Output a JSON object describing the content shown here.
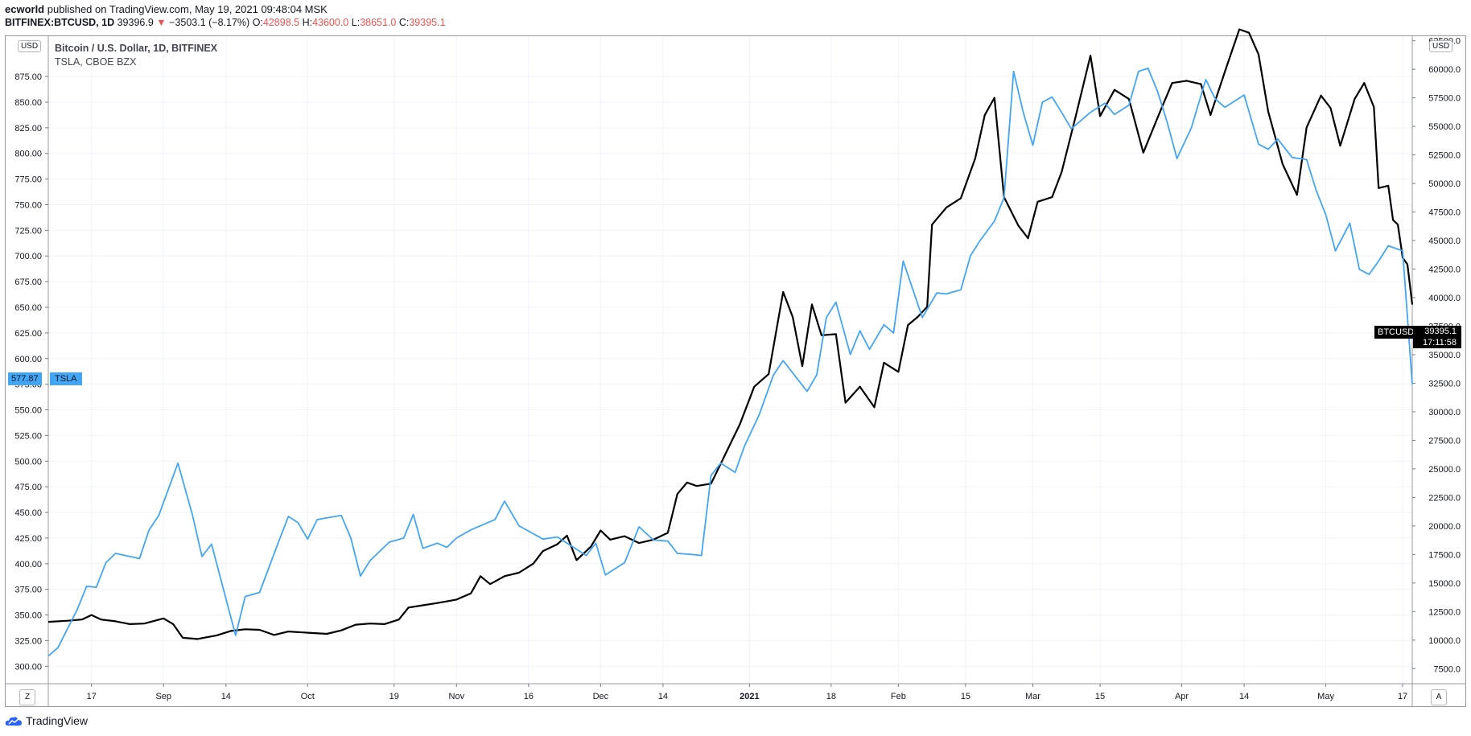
{
  "header": {
    "author": "ecworld",
    "published_text": "published on TradingView.com, May 19, 2021 09:48:04 MSK",
    "symbol": "BITFINEX:BTCUSD, 1D",
    "last": "39396.9",
    "change": "−3503.1 (−8.17%)",
    "o_label": "O:",
    "o_value": "42898.5",
    "h_label": "H:",
    "h_value": "43600.0",
    "l_label": "L:",
    "l_value": "38651.0",
    "c_label": "C:",
    "c_value": "39395.1"
  },
  "legend": {
    "line1": "Bitcoin / U.S. Dollar, 1D, BITFINEX",
    "line2": "TSLA, CBOE BZX"
  },
  "scale_tags": {
    "left": "USD",
    "right": "USD"
  },
  "labels": {
    "tsla_price": "577.87",
    "tsla_name": "TSLA",
    "btc_name": "BTCUSD",
    "btc_price": "39395.1",
    "btc_countdown": "17:11:58"
  },
  "corners": {
    "left": "Z",
    "right": "A"
  },
  "footer": {
    "brand": "TradingView"
  },
  "colors": {
    "btc": "#000000",
    "tsla": "#42a5f5",
    "grid": "#f0f3fa"
  },
  "chart_data": {
    "type": "line",
    "x_range": [
      "2020-08-08",
      "2021-05-19"
    ],
    "x_ticks": [
      {
        "date": "2020-08-17",
        "label": "17"
      },
      {
        "date": "2020-09-01",
        "label": "Sep"
      },
      {
        "date": "2020-09-14",
        "label": "14"
      },
      {
        "date": "2020-10-01",
        "label": "Oct"
      },
      {
        "date": "2020-10-19",
        "label": "19"
      },
      {
        "date": "2020-11-01",
        "label": "Nov"
      },
      {
        "date": "2020-11-16",
        "label": "16"
      },
      {
        "date": "2020-12-01",
        "label": "Dec"
      },
      {
        "date": "2020-12-14",
        "label": "14"
      },
      {
        "date": "2021-01-01",
        "label": "2021"
      },
      {
        "date": "2021-01-18",
        "label": "18"
      },
      {
        "date": "2021-02-01",
        "label": "Feb"
      },
      {
        "date": "2021-02-15",
        "label": "15"
      },
      {
        "date": "2021-03-01",
        "label": "Mar"
      },
      {
        "date": "2021-03-15",
        "label": "15"
      },
      {
        "date": "2021-04-01",
        "label": "Apr"
      },
      {
        "date": "2021-04-14",
        "label": "14"
      },
      {
        "date": "2021-05-01",
        "label": "May"
      },
      {
        "date": "2021-05-17",
        "label": "17"
      }
    ],
    "left_axis": {
      "ylim": [
        283.75,
        914.3
      ],
      "ticks": [
        "300.00",
        "325.00",
        "350.00",
        "375.00",
        "400.00",
        "425.00",
        "450.00",
        "475.00",
        "500.00",
        "525.00",
        "550.00",
        "575.00",
        "600.00",
        "625.00",
        "650.00",
        "675.00",
        "700.00",
        "725.00",
        "750.00",
        "775.00",
        "800.00",
        "825.00",
        "850.00",
        "875.00"
      ]
    },
    "right_axis": {
      "ylim": [
        6250,
        62900
      ],
      "ticks": [
        "7500.0",
        "10000.0",
        "12500.0",
        "15000.0",
        "17500.0",
        "20000.0",
        "22500.0",
        "25000.0",
        "27500.0",
        "30000.0",
        "32500.0",
        "35000.0",
        "37500.0",
        "40000.0",
        "42500.0",
        "45000.0",
        "47500.0",
        "50000.0",
        "52500.0",
        "55000.0",
        "57500.0",
        "60000.0",
        "62500.0"
      ]
    },
    "series": [
      {
        "name": "BTCUSD",
        "axis": "right",
        "points": [
          [
            "2020-08-08",
            11600
          ],
          [
            "2020-08-12",
            11700
          ],
          [
            "2020-08-15",
            11800
          ],
          [
            "2020-08-17",
            12200
          ],
          [
            "2020-08-19",
            11800
          ],
          [
            "2020-08-22",
            11650
          ],
          [
            "2020-08-25",
            11400
          ],
          [
            "2020-08-28",
            11450
          ],
          [
            "2020-09-01",
            11900
          ],
          [
            "2020-09-03",
            11400
          ],
          [
            "2020-09-05",
            10200
          ],
          [
            "2020-09-08",
            10100
          ],
          [
            "2020-09-12",
            10400
          ],
          [
            "2020-09-15",
            10800
          ],
          [
            "2020-09-18",
            10950
          ],
          [
            "2020-09-21",
            10900
          ],
          [
            "2020-09-24",
            10450
          ],
          [
            "2020-09-27",
            10750
          ],
          [
            "2020-10-01",
            10650
          ],
          [
            "2020-10-05",
            10550
          ],
          [
            "2020-10-08",
            10850
          ],
          [
            "2020-10-11",
            11350
          ],
          [
            "2020-10-14",
            11450
          ],
          [
            "2020-10-17",
            11400
          ],
          [
            "2020-10-20",
            11800
          ],
          [
            "2020-10-22",
            12850
          ],
          [
            "2020-10-25",
            13050
          ],
          [
            "2020-10-28",
            13250
          ],
          [
            "2020-11-01",
            13550
          ],
          [
            "2020-11-04",
            14100
          ],
          [
            "2020-11-06",
            15600
          ],
          [
            "2020-11-08",
            14900
          ],
          [
            "2020-11-11",
            15600
          ],
          [
            "2020-11-14",
            15900
          ],
          [
            "2020-11-17",
            16700
          ],
          [
            "2020-11-19",
            17800
          ],
          [
            "2020-11-22",
            18400
          ],
          [
            "2020-11-24",
            19150
          ],
          [
            "2020-11-26",
            17000
          ],
          [
            "2020-11-29",
            18200
          ],
          [
            "2020-12-01",
            19600
          ],
          [
            "2020-12-03",
            18800
          ],
          [
            "2020-12-06",
            19100
          ],
          [
            "2020-12-09",
            18500
          ],
          [
            "2020-12-12",
            18800
          ],
          [
            "2020-12-15",
            19400
          ],
          [
            "2020-12-17",
            22800
          ],
          [
            "2020-12-19",
            23800
          ],
          [
            "2020-12-21",
            23500
          ],
          [
            "2020-12-24",
            23700
          ],
          [
            "2020-12-27",
            26300
          ],
          [
            "2020-12-30",
            28900
          ],
          [
            "2021-01-02",
            32200
          ],
          [
            "2021-01-05",
            33300
          ],
          [
            "2021-01-08",
            40500
          ],
          [
            "2021-01-10",
            38300
          ],
          [
            "2021-01-12",
            34000
          ],
          [
            "2021-01-14",
            39400
          ],
          [
            "2021-01-16",
            36700
          ],
          [
            "2021-01-19",
            36800
          ],
          [
            "2021-01-21",
            30800
          ],
          [
            "2021-01-24",
            32200
          ],
          [
            "2021-01-27",
            30400
          ],
          [
            "2021-01-29",
            34300
          ],
          [
            "2021-02-01",
            33500
          ],
          [
            "2021-02-03",
            37600
          ],
          [
            "2021-02-05",
            38300
          ],
          [
            "2021-02-07",
            39200
          ],
          [
            "2021-02-08",
            46400
          ],
          [
            "2021-02-11",
            47900
          ],
          [
            "2021-02-14",
            48700
          ],
          [
            "2021-02-17",
            52200
          ],
          [
            "2021-02-19",
            56000
          ],
          [
            "2021-02-21",
            57500
          ],
          [
            "2021-02-23",
            48800
          ],
          [
            "2021-02-26",
            46300
          ],
          [
            "2021-02-28",
            45200
          ],
          [
            "2021-03-02",
            48400
          ],
          [
            "2021-03-05",
            48800
          ],
          [
            "2021-03-07",
            51000
          ],
          [
            "2021-03-10",
            56000
          ],
          [
            "2021-03-13",
            61200
          ],
          [
            "2021-03-15",
            55900
          ],
          [
            "2021-03-18",
            58200
          ],
          [
            "2021-03-21",
            57400
          ],
          [
            "2021-03-24",
            52700
          ],
          [
            "2021-03-27",
            55800
          ],
          [
            "2021-03-30",
            58800
          ],
          [
            "2021-04-02",
            59000
          ],
          [
            "2021-04-05",
            58700
          ],
          [
            "2021-04-07",
            56000
          ],
          [
            "2021-04-10",
            59800
          ],
          [
            "2021-04-13",
            63500
          ],
          [
            "2021-04-15",
            63200
          ],
          [
            "2021-04-17",
            61300
          ],
          [
            "2021-04-19",
            56300
          ],
          [
            "2021-04-22",
            51700
          ],
          [
            "2021-04-25",
            49000
          ],
          [
            "2021-04-27",
            54900
          ],
          [
            "2021-04-30",
            57700
          ],
          [
            "2021-05-02",
            56600
          ],
          [
            "2021-05-04",
            53300
          ],
          [
            "2021-05-07",
            57400
          ],
          [
            "2021-05-09",
            58800
          ],
          [
            "2021-05-11",
            56700
          ],
          [
            "2021-05-12",
            49600
          ],
          [
            "2021-05-14",
            49800
          ],
          [
            "2021-05-15",
            46800
          ],
          [
            "2021-05-16",
            46400
          ],
          [
            "2021-05-17",
            43500
          ],
          [
            "2021-05-18",
            42900
          ],
          [
            "2021-05-19",
            39395
          ]
        ]
      },
      {
        "name": "TSLA",
        "axis": "left",
        "points": [
          [
            "2020-08-08",
            310
          ],
          [
            "2020-08-10",
            318
          ],
          [
            "2020-08-14",
            355
          ],
          [
            "2020-08-16",
            378
          ],
          [
            "2020-08-18",
            377
          ],
          [
            "2020-08-20",
            401
          ],
          [
            "2020-08-22",
            410
          ],
          [
            "2020-08-27",
            405
          ],
          [
            "2020-08-29",
            433
          ],
          [
            "2020-08-31",
            447
          ],
          [
            "2020-09-04",
            498
          ],
          [
            "2020-09-07",
            448
          ],
          [
            "2020-09-09",
            407
          ],
          [
            "2020-09-11",
            419
          ],
          [
            "2020-09-16",
            330
          ],
          [
            "2020-09-18",
            368
          ],
          [
            "2020-09-21",
            372
          ],
          [
            "2020-09-25",
            422
          ],
          [
            "2020-09-27",
            446
          ],
          [
            "2020-09-29",
            440
          ],
          [
            "2020-10-01",
            424
          ],
          [
            "2020-10-03",
            443
          ],
          [
            "2020-10-08",
            447
          ],
          [
            "2020-10-10",
            425
          ],
          [
            "2020-10-12",
            388
          ],
          [
            "2020-10-14",
            403
          ],
          [
            "2020-10-18",
            421
          ],
          [
            "2020-10-21",
            425
          ],
          [
            "2020-10-23",
            448
          ],
          [
            "2020-10-25",
            415
          ],
          [
            "2020-10-28",
            420
          ],
          [
            "2020-10-30",
            416
          ],
          [
            "2020-11-01",
            425
          ],
          [
            "2020-11-04",
            433
          ],
          [
            "2020-11-09",
            443
          ],
          [
            "2020-11-11",
            461
          ],
          [
            "2020-11-14",
            437
          ],
          [
            "2020-11-19",
            424
          ],
          [
            "2020-11-22",
            426
          ],
          [
            "2020-11-24",
            420
          ],
          [
            "2020-11-28",
            408
          ],
          [
            "2020-11-30",
            420
          ],
          [
            "2020-12-02",
            389
          ],
          [
            "2020-12-06",
            401
          ],
          [
            "2020-12-09",
            436
          ],
          [
            "2020-12-12",
            423
          ],
          [
            "2020-12-15",
            422
          ],
          [
            "2020-12-17",
            410
          ],
          [
            "2020-12-20",
            409
          ],
          [
            "2020-12-22",
            408
          ],
          [
            "2020-12-24",
            486
          ],
          [
            "2020-12-26",
            498
          ],
          [
            "2020-12-29",
            489
          ],
          [
            "2020-12-31",
            515
          ],
          [
            "2021-01-03",
            545
          ],
          [
            "2021-01-06",
            584
          ],
          [
            "2021-01-08",
            598
          ],
          [
            "2021-01-11",
            580
          ],
          [
            "2021-01-13",
            568
          ],
          [
            "2021-01-15",
            584
          ],
          [
            "2021-01-17",
            640
          ],
          [
            "2021-01-19",
            655
          ],
          [
            "2021-01-22",
            604
          ],
          [
            "2021-01-24",
            627
          ],
          [
            "2021-01-26",
            609
          ],
          [
            "2021-01-29",
            633
          ],
          [
            "2021-01-31",
            625
          ],
          [
            "2021-02-02",
            695
          ],
          [
            "2021-02-06",
            640
          ],
          [
            "2021-02-09",
            664
          ],
          [
            "2021-02-11",
            663
          ],
          [
            "2021-02-14",
            667
          ],
          [
            "2021-02-16",
            700
          ],
          [
            "2021-02-18",
            715
          ],
          [
            "2021-02-21",
            734
          ],
          [
            "2021-02-23",
            757
          ],
          [
            "2021-02-25",
            880
          ],
          [
            "2021-02-27",
            840
          ],
          [
            "2021-03-01",
            808
          ],
          [
            "2021-03-03",
            850
          ],
          [
            "2021-03-05",
            855
          ],
          [
            "2021-03-07",
            840
          ],
          [
            "2021-03-09",
            824
          ],
          [
            "2021-03-13",
            840
          ],
          [
            "2021-03-16",
            849
          ],
          [
            "2021-03-18",
            838
          ],
          [
            "2021-03-21",
            847
          ],
          [
            "2021-03-23",
            880
          ],
          [
            "2021-03-25",
            883
          ],
          [
            "2021-03-27",
            860
          ],
          [
            "2021-03-29",
            830
          ],
          [
            "2021-03-31",
            795
          ],
          [
            "2021-04-03",
            825
          ],
          [
            "2021-04-06",
            872
          ],
          [
            "2021-04-08",
            853
          ],
          [
            "2021-04-10",
            845
          ],
          [
            "2021-04-14",
            857
          ],
          [
            "2021-04-17",
            809
          ],
          [
            "2021-04-19",
            804
          ],
          [
            "2021-04-21",
            814
          ],
          [
            "2021-04-24",
            796
          ],
          [
            "2021-04-27",
            794
          ],
          [
            "2021-04-29",
            764
          ],
          [
            "2021-05-01",
            740
          ],
          [
            "2021-05-03",
            705
          ],
          [
            "2021-05-06",
            732
          ],
          [
            "2021-05-08",
            687
          ],
          [
            "2021-05-10",
            682
          ],
          [
            "2021-05-12",
            695
          ],
          [
            "2021-05-14",
            710
          ],
          [
            "2021-05-17",
            705
          ],
          [
            "2021-05-19",
            575
          ]
        ]
      }
    ]
  }
}
